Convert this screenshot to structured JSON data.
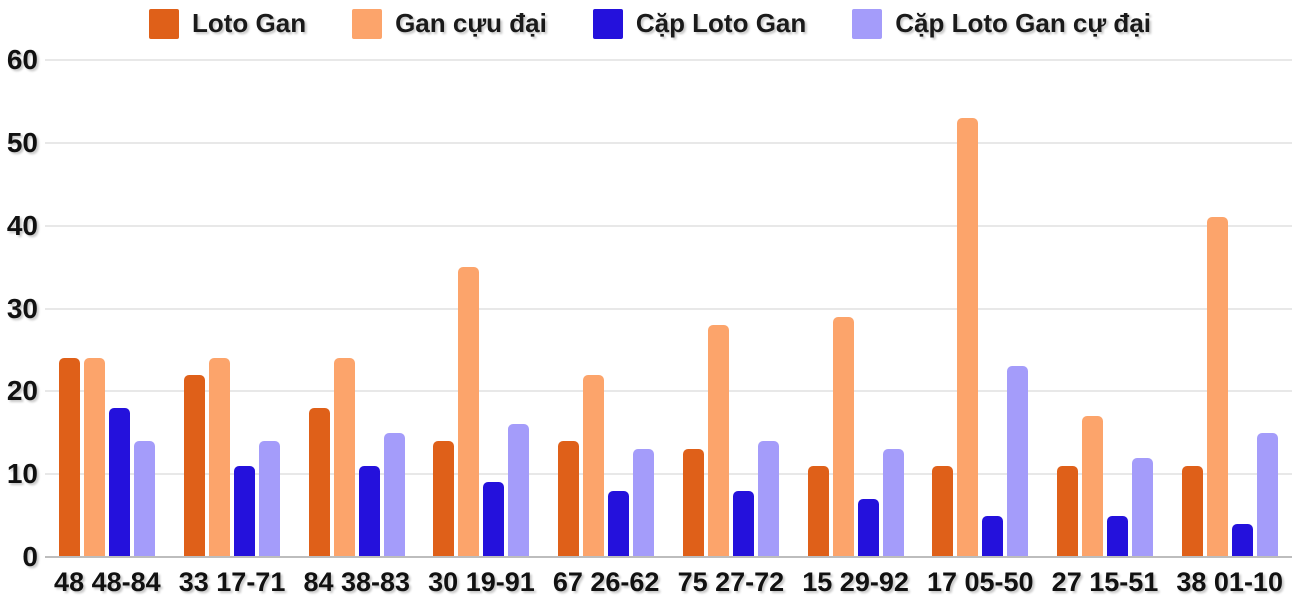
{
  "chart_data": {
    "type": "bar",
    "title": "",
    "xlabel": "",
    "ylabel": "",
    "ylim": [
      0,
      60
    ],
    "yticks": [
      0,
      10,
      20,
      30,
      40,
      50,
      60
    ],
    "grid": true,
    "legend_position": "top",
    "categories": [
      "48 48-84",
      "33 17-71",
      "84 38-83",
      "30 19-91",
      "67 26-62",
      "75 27-72",
      "15 29-92",
      "17 05-50",
      "27 15-51",
      "38 01-10"
    ],
    "series": [
      {
        "name": "Loto Gan",
        "color": "#df6019",
        "values": [
          24,
          22,
          18,
          14,
          14,
          13,
          11,
          11,
          11,
          11
        ]
      },
      {
        "name": "Gan cựu đại",
        "color": "#fca46b",
        "values": [
          24,
          24,
          24,
          35,
          22,
          28,
          29,
          53,
          17,
          41
        ]
      },
      {
        "name": "Cặp Loto Gan",
        "color": "#2411dc",
        "values": [
          18,
          11,
          11,
          9,
          8,
          8,
          7,
          5,
          5,
          4
        ]
      },
      {
        "name": "Cặp Loto Gan cự đại",
        "color": "#a49cfa",
        "values": [
          14,
          14,
          15,
          16,
          13,
          14,
          13,
          23,
          12,
          15
        ]
      }
    ],
    "colors": {
      "gridline": "#e8e8e8",
      "baseline": "#bdbdbd",
      "text": "#111111"
    }
  }
}
